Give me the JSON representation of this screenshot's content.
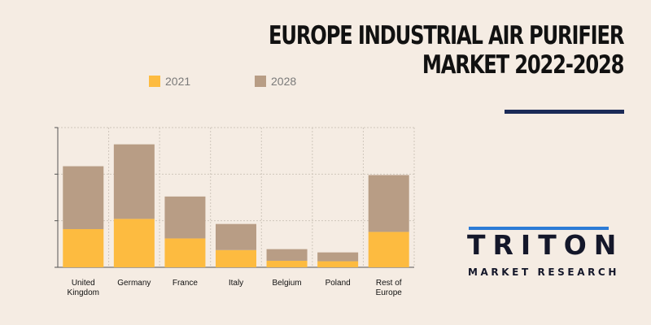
{
  "title": {
    "line1": "EUROPE INDUSTRIAL AIR PURIFIER",
    "line2": "MARKET 2022-2028"
  },
  "logo": {
    "word": "TRITON",
    "subtitle": "MARKET RESEARCH",
    "accent_color": "#2c7bd6",
    "text_color": "#14172a"
  },
  "chart_data": {
    "type": "bar",
    "stacked": true,
    "categories": [
      "United Kingdom",
      "Germany",
      "France",
      "Italy",
      "Belgium",
      "Poland",
      "Rest of Europe"
    ],
    "category_lines": [
      [
        "United",
        "Kingdom"
      ],
      [
        "Germany"
      ],
      [
        "France"
      ],
      [
        "Italy"
      ],
      [
        "Belgium"
      ],
      [
        "Poland"
      ],
      [
        "Rest of",
        "Europe"
      ]
    ],
    "series": [
      {
        "name": "2021",
        "color": "#fdbb40",
        "values": [
          0.82,
          1.04,
          0.62,
          0.37,
          0.14,
          0.13,
          0.76
        ]
      },
      {
        "name": "2028",
        "color": "#b89d85",
        "values": [
          1.35,
          1.6,
          0.9,
          0.56,
          0.25,
          0.19,
          1.22
        ]
      }
    ],
    "ylim": [
      0,
      3
    ],
    "yticks": [
      0,
      1,
      2,
      3
    ],
    "y_tick_labels_shown": false,
    "grid": true,
    "legend_position": "top"
  }
}
